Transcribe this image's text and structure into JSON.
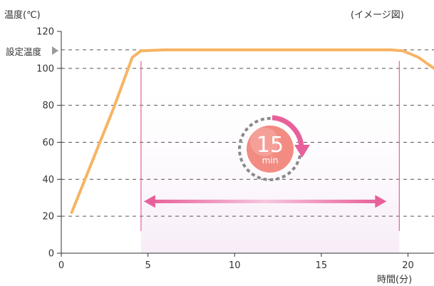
{
  "chart_data": {
    "type": "line",
    "ylabel": "温度(℃)",
    "xlabel": "時間(分)",
    "annotation": "(イメージ図)",
    "setpoint_label": "設定温度",
    "setpoint": 110,
    "xlim": [
      0,
      21.5
    ],
    "ylim": [
      0,
      120
    ],
    "xticks": [
      0,
      5,
      10,
      15,
      20
    ],
    "yticks": [
      0,
      20,
      40,
      60,
      80,
      100,
      120
    ],
    "grid_y": [
      20,
      40,
      60,
      80,
      100,
      110
    ],
    "hold_start": 4.6,
    "hold_end": 19.5,
    "hold_minutes_value": "15",
    "hold_minutes_unit": "min",
    "series": [
      {
        "color": "#f6b463",
        "points": [
          [
            0.6,
            22
          ],
          [
            3.0,
            78
          ],
          [
            4.1,
            106
          ],
          [
            4.6,
            109.5
          ],
          [
            6.0,
            110
          ],
          [
            19.0,
            110
          ],
          [
            19.7,
            109.5
          ],
          [
            20.6,
            106
          ],
          [
            21.2,
            102
          ],
          [
            21.5,
            100
          ]
        ]
      }
    ],
    "colors": {
      "curve": "#f6b463",
      "hold": "#e8609a",
      "grid": "#555555",
      "badge": "#f28c82"
    }
  }
}
